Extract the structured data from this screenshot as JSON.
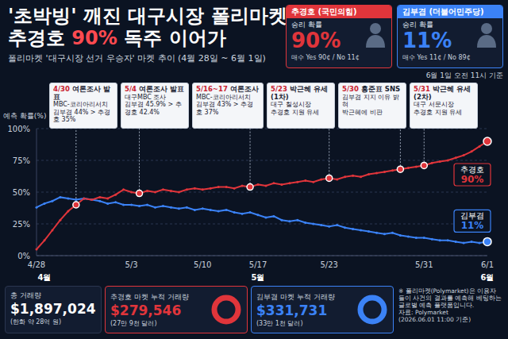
{
  "header": {
    "title": [
      "'초박빙' 깨진 대구시장 폴리마켓",
      "추경호 90% 독주 이어가"
    ],
    "subtitle": "폴리마켓 '대구시장 선거 우승자' 마켓 추이 (4월 28일 ~ 6월 1일)",
    "as_of": "6월 1일 오전 11시 기준"
  },
  "candidates": [
    {
      "name": "추경호",
      "party": "(국민의힘)",
      "label": "승리 확률",
      "probability": "90%",
      "buy": "매수 Yes 90¢ / No 11¢",
      "color": "#e0353b"
    },
    {
      "name": "김부겸",
      "party": "(더불어민주당)",
      "label": "승리 확률",
      "probability": "11%",
      "buy": "매수 Yes 11¢ / No 89¢",
      "color": "#3b82f6"
    }
  ],
  "chart_data": {
    "type": "line",
    "y_label": "예측 확률(%)",
    "categories": [
      "4/28",
      null,
      null,
      null,
      null,
      null,
      null,
      null,
      null,
      null,
      null,
      null,
      "5/3",
      null,
      null,
      null,
      null,
      null,
      null,
      null,
      null,
      "5/10",
      null,
      null,
      null,
      null,
      null,
      null,
      "5/17",
      null,
      null,
      null,
      null,
      null,
      null,
      null,
      null,
      "5/23",
      null,
      null,
      null,
      null,
      null,
      null,
      null,
      null,
      null,
      null,
      null,
      "5/31",
      null,
      null,
      null,
      null,
      null,
      null,
      null,
      "6/1"
    ],
    "month_labels": [
      null,
      "4월",
      null,
      null,
      null,
      null,
      null,
      null,
      null,
      null,
      null,
      null,
      null,
      null,
      null,
      null,
      null,
      null,
      null,
      null,
      null,
      null,
      null,
      null,
      null,
      null,
      null,
      null,
      "5월",
      null,
      null,
      null,
      null,
      null,
      null,
      null,
      null,
      null,
      null,
      null,
      null,
      null,
      null,
      null,
      null,
      null,
      null,
      null,
      null,
      null,
      null,
      null,
      null,
      null,
      null,
      null,
      null,
      "6월"
    ],
    "series": [
      {
        "name": "추경호",
        "color": "#e0353b",
        "marker": "circle",
        "end_label": "90%",
        "values": [
          5,
          12,
          20,
          28,
          35,
          40,
          45,
          44,
          46,
          45,
          48,
          52,
          50,
          49,
          51,
          50,
          52,
          51,
          50,
          52,
          53,
          52,
          53,
          54,
          54,
          53,
          55,
          54,
          56,
          55,
          57,
          56,
          57,
          58,
          59,
          58,
          60,
          61,
          60,
          62,
          63,
          62,
          64,
          65,
          66,
          67,
          68,
          69,
          70,
          71,
          73,
          74,
          75,
          77,
          79,
          82,
          86,
          90
        ]
      },
      {
        "name": "김부겸",
        "color": "#3b82f6",
        "marker": "circle",
        "end_label": "11%",
        "values": [
          38,
          41,
          43,
          46,
          45,
          44,
          45,
          44,
          43,
          41,
          42,
          40,
          40,
          39,
          40,
          38,
          39,
          38,
          37,
          38,
          36,
          37,
          36,
          35,
          36,
          34,
          33,
          34,
          32,
          30,
          31,
          28,
          27,
          28,
          26,
          25,
          24,
          23,
          24,
          22,
          21,
          20,
          19,
          18,
          17,
          18,
          16,
          15,
          14,
          14,
          13,
          12,
          12,
          11,
          10,
          11,
          10,
          11
        ]
      }
    ],
    "ylim": [
      0,
      100
    ],
    "yticks": [
      {
        "value": 0,
        "label": "0%"
      },
      {
        "value": 25,
        "label": "25%"
      },
      {
        "value": 50,
        "label": "50%"
      },
      {
        "value": 75,
        "label": "75%"
      },
      {
        "value": 100,
        "label": "100%"
      }
    ],
    "grid": true,
    "annotations": [
      {
        "point": 5,
        "on": "추경호",
        "head": "4/30 여론조사 발표",
        "lines": [
          "MBC-코리아리서치",
          "김부겸 44% > 추경호 35%"
        ]
      },
      {
        "point": 13,
        "on": "추경호",
        "head": "5/4 여론조사 발표",
        "lines": [
          "대구MBC 조사",
          "김부겸 45.9% > 추경호 42.4%"
        ]
      },
      {
        "point": 27,
        "on": "추경호",
        "head": "5/16~17 여론조사",
        "lines": [
          "MBC-코리아리서치",
          "김부겸 43% > 추경호 37%"
        ]
      },
      {
        "point": 37,
        "on": "추경호",
        "head": "5/23 박근혜 유세 (1차)",
        "lines": [
          "대구 칠성시장",
          "추경호 지원 유세"
        ]
      },
      {
        "point": 46,
        "on": "추경호",
        "head": "5/30 홍준표 SNS",
        "lines": [
          "김부겸 지지 이유 밝혀",
          "박근혜에 비판"
        ]
      },
      {
        "point": 49,
        "on": "추경호",
        "head": "5/31 박근혜 유세 (2차)",
        "lines": [
          "대구 서문시장",
          "추경호 지원 유세"
        ]
      }
    ]
  },
  "volume": {
    "total": {
      "label": "총 거래량",
      "value": "$1,897,024",
      "note": "(한화 약 28억 원)"
    },
    "markets": [
      {
        "label": "추경호 마켓 누적 거래량",
        "value": "$279,546",
        "note": "(27만 9천 달러)",
        "color": "#e0353b"
      },
      {
        "label": "김부겸 마켓 누적 거래량",
        "value": "$331,731",
        "note": "(33만 1천 달러)",
        "color": "#3b82f6"
      }
    ]
  },
  "footnote": [
    "※ 폴리마켓(Polymarket)은 이용자들이 사건의 결과를 예측해 베팅하는 글로벌 예측 플랫폼입니다.",
    "자료: Polymarket",
    "(2026.06.01 11:00 기준)"
  ]
}
